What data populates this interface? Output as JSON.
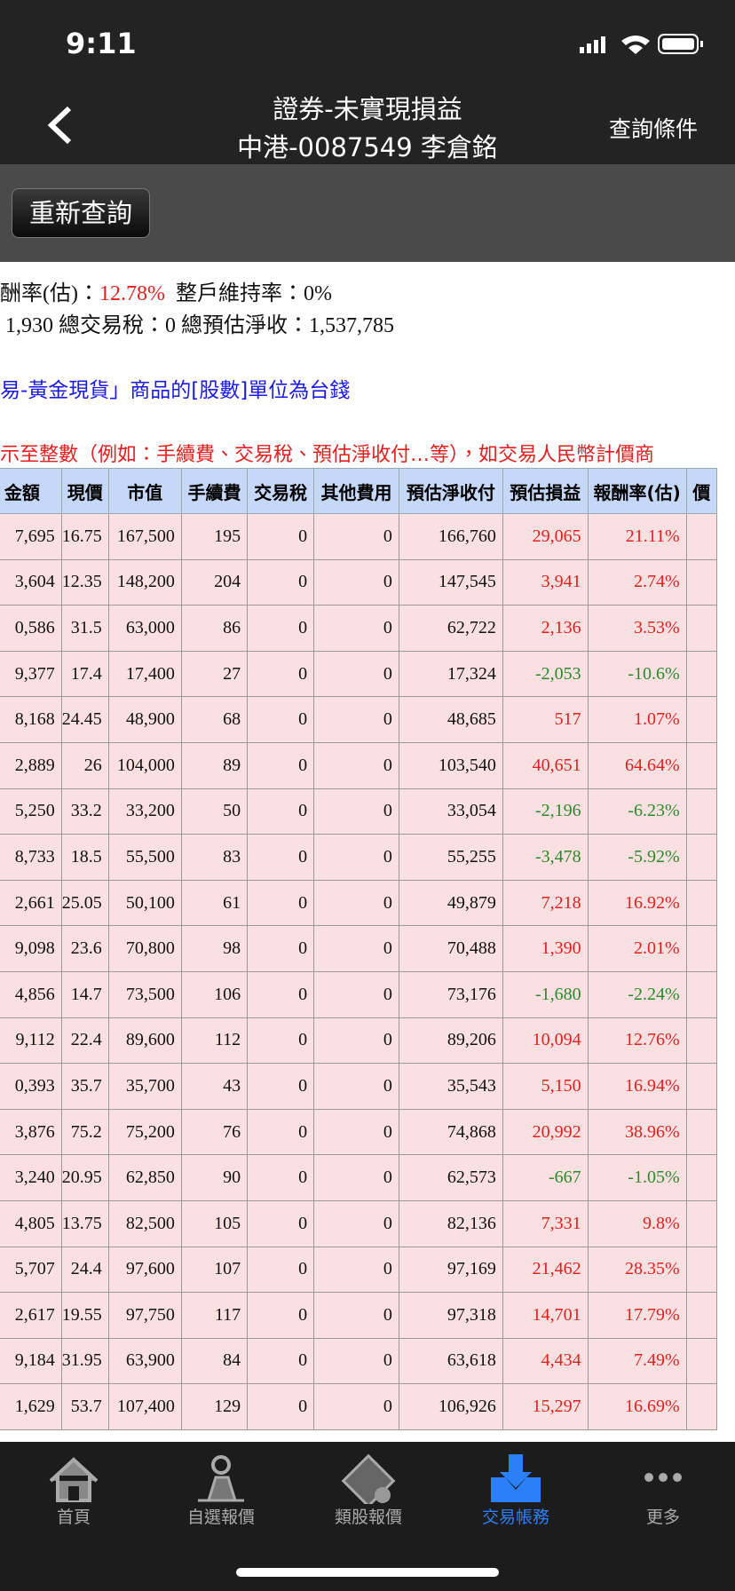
{
  "status_bar": {
    "time": "9:11"
  },
  "header": {
    "title": "證券-未實現損益",
    "subtitle": "中港-0087549 李倉銘",
    "action": "查詢條件"
  },
  "toolbar": {
    "button": "重新查詢"
  },
  "summary": {
    "line1": [
      "酬率(估)：",
      "12.78%",
      "整戶維持率：0%"
    ],
    "line2": "1,930  總交易稅：0  總預估淨收：1,537,785",
    "note_blue": "易-黃金現貨」商品的[股數]單位為台錢",
    "note_red": "示至整數（例如：手續費、交易稅、預估淨收付…等），如交易人民幣計價商"
  },
  "table": {
    "headers": [
      "金額",
      "現價",
      "市值",
      "手續費",
      "交易稅",
      "其他費用",
      "預估淨收付",
      "預估損益",
      "報酬率(估)",
      "價"
    ],
    "rows": [
      [
        "7,695",
        "16.75",
        "167,500",
        "195",
        "0",
        "0",
        "166,760",
        "29,065",
        "21.11%"
      ],
      [
        "3,604",
        "12.35",
        "148,200",
        "204",
        "0",
        "0",
        "147,545",
        "3,941",
        "2.74%"
      ],
      [
        "0,586",
        "31.5",
        "63,000",
        "86",
        "0",
        "0",
        "62,722",
        "2,136",
        "3.53%"
      ],
      [
        "9,377",
        "17.4",
        "17,400",
        "27",
        "0",
        "0",
        "17,324",
        "-2,053",
        "-10.6%"
      ],
      [
        "8,168",
        "24.45",
        "48,900",
        "68",
        "0",
        "0",
        "48,685",
        "517",
        "1.07%"
      ],
      [
        "2,889",
        "26",
        "104,000",
        "89",
        "0",
        "0",
        "103,540",
        "40,651",
        "64.64%"
      ],
      [
        "5,250",
        "33.2",
        "33,200",
        "50",
        "0",
        "0",
        "33,054",
        "-2,196",
        "-6.23%"
      ],
      [
        "8,733",
        "18.5",
        "55,500",
        "83",
        "0",
        "0",
        "55,255",
        "-3,478",
        "-5.92%"
      ],
      [
        "2,661",
        "25.05",
        "50,100",
        "61",
        "0",
        "0",
        "49,879",
        "7,218",
        "16.92%"
      ],
      [
        "9,098",
        "23.6",
        "70,800",
        "98",
        "0",
        "0",
        "70,488",
        "1,390",
        "2.01%"
      ],
      [
        "4,856",
        "14.7",
        "73,500",
        "106",
        "0",
        "0",
        "73,176",
        "-1,680",
        "-2.24%"
      ],
      [
        "9,112",
        "22.4",
        "89,600",
        "112",
        "0",
        "0",
        "89,206",
        "10,094",
        "12.76%"
      ],
      [
        "0,393",
        "35.7",
        "35,700",
        "43",
        "0",
        "0",
        "35,543",
        "5,150",
        "16.94%"
      ],
      [
        "3,876",
        "75.2",
        "75,200",
        "76",
        "0",
        "0",
        "74,868",
        "20,992",
        "38.96%"
      ],
      [
        "3,240",
        "20.95",
        "62,850",
        "90",
        "0",
        "0",
        "62,573",
        "-667",
        "-1.05%"
      ],
      [
        "4,805",
        "13.75",
        "82,500",
        "105",
        "0",
        "0",
        "82,136",
        "7,331",
        "9.8%"
      ],
      [
        "5,707",
        "24.4",
        "97,600",
        "107",
        "0",
        "0",
        "97,169",
        "21,462",
        "28.35%"
      ],
      [
        "2,617",
        "19.55",
        "97,750",
        "117",
        "0",
        "0",
        "97,318",
        "14,701",
        "17.79%"
      ],
      [
        "9,184",
        "31.95",
        "63,900",
        "84",
        "0",
        "0",
        "63,618",
        "4,434",
        "7.49%"
      ],
      [
        "1,629",
        "53.7",
        "107,400",
        "129",
        "0",
        "0",
        "106,926",
        "15,297",
        "16.69%"
      ]
    ]
  },
  "tabs": [
    "首頁",
    "自選報價",
    "類股報價",
    "交易帳務",
    "更多"
  ]
}
